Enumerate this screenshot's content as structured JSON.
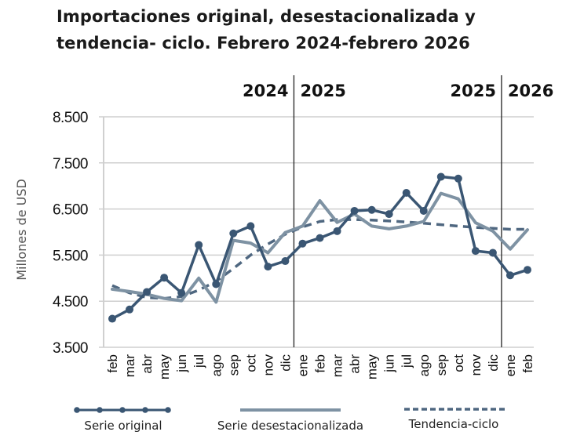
{
  "chart_data": {
    "type": "line",
    "title": "Importaciones original, desestacionalizada y tendencia- ciclo. Febrero 2024-febrero 2026",
    "title_lines": [
      "Importaciones original, desestacionalizada y",
      "tendencia- ciclo. Febrero 2024-febrero 2026"
    ],
    "xlabel": "",
    "ylabel": "Millones de USD",
    "ylim": [
      3500,
      8500
    ],
    "yticks": [
      3500,
      4500,
      5500,
      6500,
      7500,
      8500
    ],
    "ytick_labels": [
      "3.500",
      "4.500",
      "5.500",
      "6.500",
      "7.500",
      "8.500"
    ],
    "grid": "horizontal",
    "categories": [
      "feb",
      "mar",
      "abr",
      "may",
      "jun",
      "jul",
      "ago",
      "sep",
      "oct",
      "nov",
      "dic",
      "ene",
      "feb",
      "mar",
      "abr",
      "may",
      "jun",
      "jul",
      "ago",
      "sep",
      "oct",
      "nov",
      "dic",
      "ene",
      "feb"
    ],
    "year_markers": [
      {
        "label_left": "2024",
        "label_right": "2025",
        "between": [
          10,
          11
        ]
      },
      {
        "label_left": "2025",
        "label_right": "2026",
        "between": [
          22,
          23
        ]
      }
    ],
    "series": [
      {
        "name": "Serie original",
        "style": "line-markers",
        "color": "#3a5673",
        "values": [
          4120,
          4320,
          4700,
          5010,
          4680,
          5720,
          4870,
          5970,
          6130,
          5250,
          5370,
          5750,
          5870,
          6020,
          6460,
          6480,
          6390,
          6850,
          6460,
          7200,
          7160,
          5590,
          5550,
          5060,
          5180
        ]
      },
      {
        "name": "Serie desestacionalizada",
        "style": "solid",
        "color": "#7e92a3",
        "values": [
          4760,
          4710,
          4650,
          4560,
          4510,
          5000,
          4480,
          5820,
          5760,
          5550,
          5990,
          6130,
          6680,
          6210,
          6390,
          6130,
          6070,
          6130,
          6230,
          6840,
          6720,
          6200,
          6020,
          5630,
          6050
        ]
      },
      {
        "name": "Tendencia-ciclo",
        "style": "dashed",
        "color": "#4f6780",
        "values": [
          4840,
          4680,
          4580,
          4560,
          4600,
          4740,
          4930,
          5210,
          5500,
          5740,
          5950,
          6110,
          6230,
          6270,
          6270,
          6260,
          6240,
          6220,
          6190,
          6160,
          6130,
          6100,
          6080,
          6060,
          6060
        ]
      }
    ],
    "legend": {
      "position": "bottom",
      "entries": [
        "Serie original",
        "Serie desestacionalizada",
        "Tendencia-ciclo"
      ]
    }
  }
}
